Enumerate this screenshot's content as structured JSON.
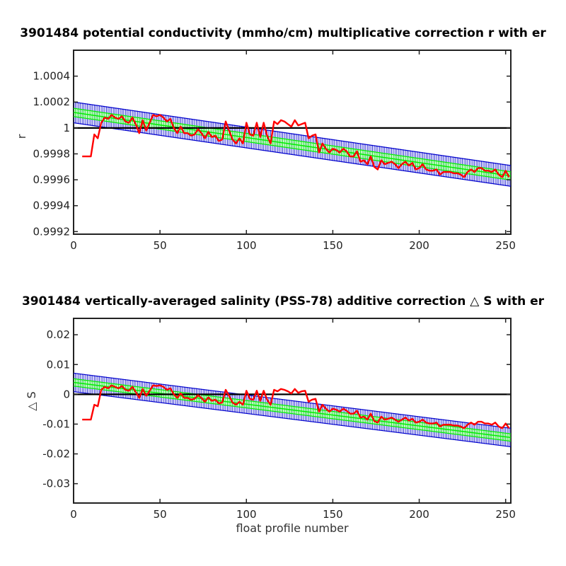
{
  "chart_data": [
    {
      "type": "line",
      "title": "3901484 potential conductivity (mmho/cm) multiplicative correction r with er",
      "xlabel": "",
      "ylabel": "r",
      "xlim": [
        0,
        253
      ],
      "ylim": [
        0.99918,
        1.0006
      ],
      "xticks": [
        "0",
        "50",
        "100",
        "150",
        "200",
        "250"
      ],
      "yticks": [
        "1.0004",
        "1.0002",
        "1",
        "0.9998",
        "0.9996",
        "0.9994",
        "0.9992"
      ],
      "grid": false,
      "reference_line": 1.0,
      "colors": {
        "measured": "#ff0000",
        "fit": "#00ee00",
        "error_bars": "#0000cc",
        "reference": "#000000"
      },
      "series": [
        {
          "x": [
            5,
            8,
            10,
            12,
            14,
            16,
            18,
            20,
            22,
            24,
            26,
            28,
            30,
            32,
            34,
            36,
            38,
            40,
            42,
            44,
            46,
            48,
            50,
            52,
            54,
            56,
            58,
            60,
            62,
            64,
            66,
            68,
            70,
            72,
            74,
            76,
            78,
            80,
            82,
            84,
            86,
            88,
            90,
            92,
            94,
            96,
            98,
            100,
            102,
            104,
            106,
            108,
            110,
            112,
            114,
            116,
            118,
            120,
            122,
            124,
            126,
            128,
            130,
            132,
            134,
            136,
            138,
            140,
            142,
            144,
            146,
            148,
            150,
            152,
            154,
            156,
            158,
            160,
            162,
            164,
            166,
            168,
            170,
            172,
            174,
            176,
            178,
            180,
            182,
            184,
            186,
            188,
            190,
            192,
            194,
            196,
            198,
            200,
            202,
            204,
            206,
            208,
            210,
            212,
            214,
            216,
            218,
            220,
            222,
            224,
            226,
            228,
            230,
            232,
            234,
            236,
            238,
            240,
            242,
            244,
            246,
            248,
            250,
            252
          ],
          "values": [
            0.99978,
            0.99978,
            0.99978,
            0.99995,
            0.99992,
            1.00004,
            1.00008,
            1.00007,
            1.0001,
            1.00008,
            1.00007,
            1.00009,
            1.00005,
            1.00004,
            1.00008,
            1.00003,
            0.99996,
            1.00006,
            0.99998,
            1.00004,
            1.0001,
            1.00009,
            1.0001,
            1.00008,
            1.00005,
            1.00007,
            1.0,
            0.99996,
            1.00001,
            0.99996,
            0.99996,
            0.99994,
            0.99995,
            0.99999,
            0.99996,
            0.99992,
            0.99997,
            0.99993,
            0.99994,
            0.9999,
            0.99991,
            1.00005,
            0.99998,
            0.99991,
            0.99988,
            0.99992,
            0.99988,
            1.00004,
            0.99995,
            0.99994,
            1.00004,
            0.99993,
            1.00004,
            0.99994,
            0.99988,
            1.00005,
            1.00003,
            1.00006,
            1.00005,
            1.00003,
            1.00001,
            1.00006,
            1.00002,
            1.00003,
            1.00004,
            0.99992,
            0.99994,
            0.99995,
            0.99981,
            0.99988,
            0.99984,
            0.99981,
            0.99984,
            0.99983,
            0.99981,
            0.99984,
            0.99982,
            0.99978,
            0.99978,
            0.99982,
            0.99974,
            0.99975,
            0.99972,
            0.99978,
            0.9997,
            0.99968,
            0.99975,
            0.99972,
            0.99973,
            0.99974,
            0.99972,
            0.99969,
            0.99972,
            0.99974,
            0.99971,
            0.99973,
            0.99968,
            0.99969,
            0.99972,
            0.99968,
            0.99967,
            0.99967,
            0.99968,
            0.99964,
            0.99966,
            0.99966,
            0.99966,
            0.99965,
            0.99965,
            0.99964,
            0.99962,
            0.99966,
            0.99968,
            0.99966,
            0.99969,
            0.99969,
            0.99967,
            0.99967,
            0.99966,
            0.99968,
            0.99964,
            0.99962,
            0.99967,
            0.99962
          ]
        },
        {
          "x": [
            0,
            253
          ],
          "values": [
            1.00012,
            0.99963
          ]
        }
      ],
      "error_band_halfwidth": 8e-05
    },
    {
      "type": "line",
      "title": "3901484 vertically-averaged salinity (PSS-78) additive correction △ S with er",
      "xlabel": "float profile number",
      "ylabel": "△ S",
      "xlim": [
        0,
        253
      ],
      "ylim": [
        -0.0365,
        0.0255
      ],
      "xticks": [
        "0",
        "50",
        "100",
        "150",
        "200",
        "250"
      ],
      "yticks": [
        "0.02",
        "0.01",
        "0",
        "-0.01",
        "-0.02",
        "-0.03"
      ],
      "grid": false,
      "reference_line": 0,
      "colors": {
        "measured": "#ff0000",
        "fit": "#00ee00",
        "error_bars": "#0000cc",
        "reference": "#000000"
      },
      "series": [
        {
          "x": [
            5,
            8,
            10,
            12,
            14,
            16,
            18,
            20,
            22,
            24,
            26,
            28,
            30,
            32,
            34,
            36,
            38,
            40,
            42,
            44,
            46,
            48,
            50,
            52,
            54,
            56,
            58,
            60,
            62,
            64,
            66,
            68,
            70,
            72,
            74,
            76,
            78,
            80,
            82,
            84,
            86,
            88,
            90,
            92,
            94,
            96,
            98,
            100,
            102,
            104,
            106,
            108,
            110,
            112,
            114,
            116,
            118,
            120,
            122,
            124,
            126,
            128,
            130,
            132,
            134,
            136,
            138,
            140,
            142,
            144,
            146,
            148,
            150,
            152,
            154,
            156,
            158,
            160,
            162,
            164,
            166,
            168,
            170,
            172,
            174,
            176,
            178,
            180,
            182,
            184,
            186,
            188,
            190,
            192,
            194,
            196,
            198,
            200,
            202,
            204,
            206,
            208,
            210,
            212,
            214,
            216,
            218,
            220,
            222,
            224,
            226,
            228,
            230,
            232,
            234,
            236,
            238,
            240,
            242,
            244,
            246,
            248,
            250,
            252
          ],
          "values": [
            -0.0085,
            -0.0085,
            -0.0085,
            -0.0035,
            -0.004,
            0.0015,
            0.0025,
            0.002,
            0.003,
            0.0025,
            0.002,
            0.0028,
            0.0015,
            0.0012,
            0.0025,
            0.0008,
            -0.0012,
            0.0018,
            -0.0005,
            0.0012,
            0.003,
            0.0028,
            0.003,
            0.0025,
            0.0015,
            0.002,
            0.0,
            -0.0012,
            0.0003,
            -0.0012,
            -0.0012,
            -0.0018,
            -0.0015,
            -0.0003,
            -0.0012,
            -0.0025,
            -0.001,
            -0.0022,
            -0.0018,
            -0.003,
            -0.0028,
            0.0015,
            -0.0005,
            -0.0028,
            -0.0035,
            -0.0025,
            -0.0035,
            0.0012,
            -0.0015,
            -0.0018,
            0.0012,
            -0.0022,
            0.0012,
            -0.0018,
            -0.0035,
            0.0015,
            0.001,
            0.0018,
            0.0015,
            0.001,
            0.0003,
            0.0018,
            0.0005,
            0.001,
            0.0012,
            -0.0025,
            -0.0018,
            -0.0015,
            -0.0058,
            -0.0035,
            -0.0048,
            -0.0058,
            -0.0048,
            -0.0052,
            -0.0058,
            -0.0048,
            -0.0055,
            -0.0065,
            -0.0065,
            -0.0055,
            -0.0078,
            -0.0075,
            -0.0085,
            -0.0065,
            -0.009,
            -0.0095,
            -0.0075,
            -0.0085,
            -0.0082,
            -0.0078,
            -0.0085,
            -0.0092,
            -0.0085,
            -0.0078,
            -0.0088,
            -0.0082,
            -0.0095,
            -0.0092,
            -0.0085,
            -0.0095,
            -0.0098,
            -0.0098,
            -0.0095,
            -0.0108,
            -0.0102,
            -0.0102,
            -0.0102,
            -0.0105,
            -0.0105,
            -0.0108,
            -0.0114,
            -0.0102,
            -0.0095,
            -0.0102,
            -0.0092,
            -0.0092,
            -0.0098,
            -0.0098,
            -0.0102,
            -0.0095,
            -0.0108,
            -0.0114,
            -0.0098,
            -0.0114
          ]
        },
        {
          "x": [
            0,
            253
          ],
          "values": [
            0.004,
            -0.0145
          ]
        }
      ],
      "error_band_halfwidth": 0.0031
    }
  ]
}
